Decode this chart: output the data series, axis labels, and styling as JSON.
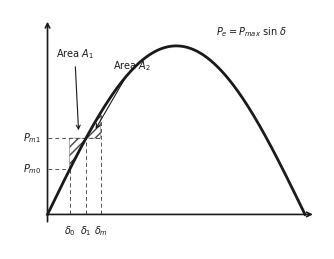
{
  "formula_text": "$P_e = P_{max}$ sin $\\delta$",
  "delta_0": 0.27,
  "delta_1": 0.47,
  "delta_m": 0.65,
  "curve_color": "#1a1a1a",
  "hatch_color": "#555555",
  "dashed_color": "#555555",
  "axis_color": "#1a1a1a",
  "label_color": "#1a1a1a",
  "background_color": "#ffffff",
  "pi_val": 3.14159265,
  "label_area1": "Area $A_1$",
  "label_area2": "Area $A_2$",
  "label_Pm1": "$P_{m1}$",
  "label_Pm0": "$P_{m0}$",
  "label_delta0": "$\\delta_0$",
  "label_delta1": "$\\delta_1$",
  "label_deltam": "$\\delta_m$"
}
